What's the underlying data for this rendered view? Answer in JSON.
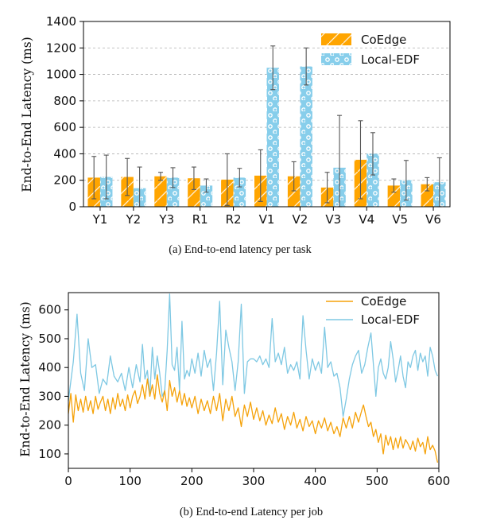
{
  "chart_data": [
    {
      "type": "bar",
      "caption": "(a)  End-to-end latency per task",
      "ylabel": "End-to-End Latency (ms)",
      "ylim": [
        0,
        1400
      ],
      "yticks": [
        0,
        200,
        400,
        600,
        800,
        1000,
        1200,
        1400
      ],
      "grid": "horizontal dashed",
      "legend_position": "top-right",
      "categories": [
        "Y1",
        "Y2",
        "Y3",
        "R1",
        "R2",
        "V1",
        "V2",
        "V3",
        "V4",
        "V5",
        "V6"
      ],
      "series": [
        {
          "name": "CoEdge",
          "color": "#ffa500",
          "pattern": "diagonal-hatch",
          "values": [
            220,
            225,
            230,
            215,
            205,
            235,
            230,
            145,
            355,
            160,
            170
          ],
          "errors": [
            160,
            140,
            30,
            85,
            195,
            195,
            110,
            115,
            295,
            50,
            50
          ]
        },
        {
          "name": "Local-EDF",
          "color": "#87ceeb",
          "pattern": "circles",
          "values": [
            225,
            140,
            220,
            160,
            220,
            1050,
            1060,
            295,
            400,
            200,
            185
          ],
          "errors": [
            165,
            160,
            75,
            50,
            70,
            165,
            140,
            395,
            160,
            150,
            185
          ]
        }
      ]
    },
    {
      "type": "line",
      "caption": "(b)  End-to-end Latency per job",
      "ylabel": "End-to-End Latency (ms)",
      "xlim": [
        0,
        600
      ],
      "ylim": [
        50,
        660
      ],
      "xticks": [
        0,
        100,
        200,
        300,
        400,
        500,
        600
      ],
      "yticks": [
        100,
        200,
        300,
        400,
        500,
        600
      ],
      "legend_position": "top-right",
      "series": [
        {
          "name": "CoEdge",
          "color": "#f5a20a",
          "points": [
            [
              0,
              240
            ],
            [
              4,
              310
            ],
            [
              8,
              210
            ],
            [
              12,
              305
            ],
            [
              16,
              250
            ],
            [
              20,
              290
            ],
            [
              24,
              245
            ],
            [
              28,
              300
            ],
            [
              32,
              250
            ],
            [
              36,
              285
            ],
            [
              40,
              240
            ],
            [
              44,
              300
            ],
            [
              48,
              255
            ],
            [
              52,
              280
            ],
            [
              56,
              300
            ],
            [
              60,
              250
            ],
            [
              64,
              290
            ],
            [
              68,
              240
            ],
            [
              72,
              295
            ],
            [
              76,
              255
            ],
            [
              80,
              310
            ],
            [
              84,
              265
            ],
            [
              88,
              290
            ],
            [
              92,
              250
            ],
            [
              96,
              305
            ],
            [
              100,
              260
            ],
            [
              104,
              300
            ],
            [
              108,
              320
            ],
            [
              112,
              275
            ],
            [
              116,
              300
            ],
            [
              120,
              340
            ],
            [
              124,
              290
            ],
            [
              128,
              360
            ],
            [
              132,
              300
            ],
            [
              136,
              340
            ],
            [
              140,
              290
            ],
            [
              144,
              375
            ],
            [
              148,
              310
            ],
            [
              152,
              280
            ],
            [
              156,
              320
            ],
            [
              160,
              250
            ],
            [
              164,
              355
            ],
            [
              168,
              300
            ],
            [
              172,
              330
            ],
            [
              176,
              280
            ],
            [
              180,
              320
            ],
            [
              184,
              270
            ],
            [
              188,
              310
            ],
            [
              192,
              265
            ],
            [
              196,
              295
            ],
            [
              200,
              260
            ],
            [
              205,
              300
            ],
            [
              210,
              240
            ],
            [
              215,
              290
            ],
            [
              220,
              250
            ],
            [
              225,
              285
            ],
            [
              230,
              240
            ],
            [
              235,
              300
            ],
            [
              240,
              250
            ],
            [
              245,
              310
            ],
            [
              250,
              215
            ],
            [
              255,
              290
            ],
            [
              260,
              250
            ],
            [
              265,
              300
            ],
            [
              270,
              230
            ],
            [
              275,
              260
            ],
            [
              280,
              195
            ],
            [
              285,
              270
            ],
            [
              290,
              230
            ],
            [
              295,
              280
            ],
            [
              300,
              220
            ],
            [
              305,
              260
            ],
            [
              310,
              215
            ],
            [
              315,
              250
            ],
            [
              320,
              200
            ],
            [
              325,
              235
            ],
            [
              330,
              205
            ],
            [
              335,
              260
            ],
            [
              340,
              210
            ],
            [
              345,
              240
            ],
            [
              350,
              185
            ],
            [
              355,
              230
            ],
            [
              360,
              200
            ],
            [
              365,
              245
            ],
            [
              370,
              190
            ],
            [
              375,
              220
            ],
            [
              380,
              180
            ],
            [
              385,
              230
            ],
            [
              390,
              195
            ],
            [
              395,
              215
            ],
            [
              400,
              170
            ],
            [
              405,
              215
            ],
            [
              410,
              190
            ],
            [
              415,
              225
            ],
            [
              420,
              180
            ],
            [
              425,
              210
            ],
            [
              430,
              170
            ],
            [
              435,
              195
            ],
            [
              440,
              160
            ],
            [
              445,
              225
            ],
            [
              450,
              190
            ],
            [
              455,
              230
            ],
            [
              460,
              190
            ],
            [
              465,
              245
            ],
            [
              470,
              210
            ],
            [
              475,
              250
            ],
            [
              478,
              270
            ],
            [
              482,
              230
            ],
            [
              486,
              195
            ],
            [
              490,
              210
            ],
            [
              494,
              160
            ],
            [
              498,
              185
            ],
            [
              502,
              140
            ],
            [
              506,
              170
            ],
            [
              510,
              100
            ],
            [
              514,
              165
            ],
            [
              518,
              130
            ],
            [
              522,
              160
            ],
            [
              526,
              115
            ],
            [
              530,
              155
            ],
            [
              534,
              120
            ],
            [
              538,
              160
            ],
            [
              542,
              120
            ],
            [
              546,
              150
            ],
            [
              550,
              135
            ],
            [
              554,
              115
            ],
            [
              558,
              145
            ],
            [
              562,
              110
            ],
            [
              566,
              155
            ],
            [
              570,
              125
            ],
            [
              574,
              140
            ],
            [
              578,
              100
            ],
            [
              582,
              160
            ],
            [
              586,
              115
            ],
            [
              590,
              130
            ],
            [
              594,
              110
            ],
            [
              598,
              70
            ]
          ]
        },
        {
          "name": "Local-EDF",
          "color": "#7ec8e3",
          "points": [
            [
              0,
              285
            ],
            [
              8,
              420
            ],
            [
              14,
              585
            ],
            [
              20,
              380
            ],
            [
              26,
              320
            ],
            [
              32,
              500
            ],
            [
              38,
              400
            ],
            [
              44,
              410
            ],
            [
              50,
              310
            ],
            [
              56,
              360
            ],
            [
              62,
              340
            ],
            [
              68,
              440
            ],
            [
              74,
              370
            ],
            [
              80,
              350
            ],
            [
              86,
              380
            ],
            [
              92,
              320
            ],
            [
              98,
              400
            ],
            [
              104,
              330
            ],
            [
              110,
              410
            ],
            [
              116,
              350
            ],
            [
              120,
              480
            ],
            [
              124,
              360
            ],
            [
              128,
              390
            ],
            [
              132,
              300
            ],
            [
              136,
              470
            ],
            [
              140,
              360
            ],
            [
              144,
              440
            ],
            [
              148,
              380
            ],
            [
              152,
              300
            ],
            [
              156,
              320
            ],
            [
              160,
              460
            ],
            [
              164,
              655
            ],
            [
              168,
              410
            ],
            [
              172,
              390
            ],
            [
              176,
              470
            ],
            [
              180,
              320
            ],
            [
              184,
              560
            ],
            [
              188,
              360
            ],
            [
              192,
              390
            ],
            [
              196,
              370
            ],
            [
              200,
              430
            ],
            [
              205,
              380
            ],
            [
              210,
              450
            ],
            [
              215,
              370
            ],
            [
              220,
              460
            ],
            [
              225,
              400
            ],
            [
              230,
              430
            ],
            [
              235,
              320
            ],
            [
              240,
              450
            ],
            [
              245,
              630
            ],
            [
              250,
              340
            ],
            [
              255,
              530
            ],
            [
              260,
              470
            ],
            [
              265,
              420
            ],
            [
              270,
              320
            ],
            [
              275,
              420
            ],
            [
              280,
              620
            ],
            [
              285,
              310
            ],
            [
              290,
              420
            ],
            [
              295,
              430
            ],
            [
              300,
              430
            ],
            [
              305,
              420
            ],
            [
              310,
              440
            ],
            [
              315,
              410
            ],
            [
              320,
              430
            ],
            [
              325,
              400
            ],
            [
              330,
              570
            ],
            [
              335,
              420
            ],
            [
              340,
              450
            ],
            [
              345,
              410
            ],
            [
              350,
              470
            ],
            [
              355,
              380
            ],
            [
              360,
              410
            ],
            [
              365,
              390
            ],
            [
              370,
              420
            ],
            [
              375,
              360
            ],
            [
              380,
              580
            ],
            [
              385,
              460
            ],
            [
              390,
              360
            ],
            [
              395,
              430
            ],
            [
              400,
              390
            ],
            [
              405,
              420
            ],
            [
              410,
              380
            ],
            [
              415,
              540
            ],
            [
              420,
              400
            ],
            [
              425,
              420
            ],
            [
              430,
              370
            ],
            [
              435,
              380
            ],
            [
              440,
              330
            ],
            [
              445,
              230
            ],
            [
              450,
              290
            ],
            [
              455,
              360
            ],
            [
              460,
              410
            ],
            [
              465,
              440
            ],
            [
              470,
              460
            ],
            [
              475,
              380
            ],
            [
              480,
              410
            ],
            [
              485,
              470
            ],
            [
              490,
              520
            ],
            [
              494,
              410
            ],
            [
              498,
              300
            ],
            [
              502,
              400
            ],
            [
              506,
              430
            ],
            [
              510,
              380
            ],
            [
              514,
              360
            ],
            [
              518,
              400
            ],
            [
              522,
              490
            ],
            [
              526,
              430
            ],
            [
              530,
              350
            ],
            [
              534,
              390
            ],
            [
              538,
              440
            ],
            [
              542,
              370
            ],
            [
              546,
              330
            ],
            [
              550,
              420
            ],
            [
              554,
              400
            ],
            [
              558,
              440
            ],
            [
              562,
              460
            ],
            [
              566,
              390
            ],
            [
              570,
              450
            ],
            [
              574,
              420
            ],
            [
              578,
              440
            ],
            [
              582,
              370
            ],
            [
              586,
              470
            ],
            [
              590,
              440
            ],
            [
              594,
              390
            ],
            [
              598,
              370
            ]
          ]
        }
      ]
    }
  ]
}
